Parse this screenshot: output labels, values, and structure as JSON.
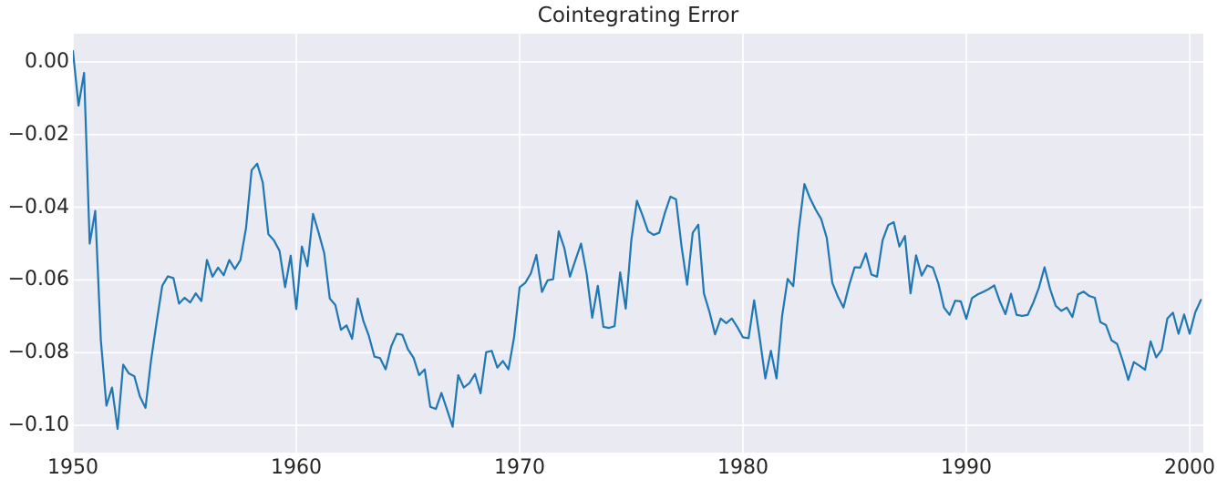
{
  "figure": {
    "kind": "matplotlib-seaborn-figure"
  },
  "chart_data": {
    "type": "line",
    "title": "Cointegrating Error",
    "xlabel": "",
    "ylabel": "",
    "x_unit": "year (quarterly observations)",
    "x_start": 1950.0,
    "x_step": 0.25,
    "xlim": [
      1950.0,
      2000.61
    ],
    "ylim": [
      -0.1075,
      0.00777
    ],
    "x_ticks": [
      1950,
      1960,
      1970,
      1980,
      1990,
      2000
    ],
    "x_tick_labels": [
      "1950",
      "1960",
      "1970",
      "1980",
      "1990",
      "2000"
    ],
    "y_ticks": [
      0.0,
      -0.02,
      -0.04,
      -0.06,
      -0.08,
      -0.1
    ],
    "y_tick_labels": [
      "0.00",
      "−0.02",
      "−0.04",
      "−0.06",
      "−0.08",
      "−0.10"
    ],
    "grid": true,
    "legend": null,
    "line_color": "#1f77b4",
    "line_width": 2.2,
    "background_color": "#eaeaf2",
    "grid_color": "#ffffff",
    "text_color": "#262626",
    "values": [
      0.003,
      -0.012,
      -0.003,
      -0.05,
      -0.041,
      -0.0766,
      -0.0946,
      -0.0896,
      -0.101,
      -0.0833,
      -0.0857,
      -0.0865,
      -0.0921,
      -0.0952,
      -0.082,
      -0.0715,
      -0.0616,
      -0.059,
      -0.0595,
      -0.0665,
      -0.0649,
      -0.0662,
      -0.0637,
      -0.0658,
      -0.0545,
      -0.0591,
      -0.0566,
      -0.0587,
      -0.0545,
      -0.057,
      -0.0545,
      -0.0457,
      -0.0298,
      -0.028,
      -0.0332,
      -0.0474,
      -0.0491,
      -0.052,
      -0.062,
      -0.0533,
      -0.068,
      -0.0508,
      -0.0562,
      -0.0418,
      -0.047,
      -0.0526,
      -0.0651,
      -0.0669,
      -0.0737,
      -0.0725,
      -0.0762,
      -0.0651,
      -0.0712,
      -0.0754,
      -0.0811,
      -0.0815,
      -0.0846,
      -0.0783,
      -0.0748,
      -0.0751,
      -0.0791,
      -0.0814,
      -0.0862,
      -0.0846,
      -0.0949,
      -0.0955,
      -0.0911,
      -0.0957,
      -0.1004,
      -0.0862,
      -0.0896,
      -0.0884,
      -0.0859,
      -0.0912,
      -0.0799,
      -0.0795,
      -0.0841,
      -0.0823,
      -0.0846,
      -0.0758,
      -0.062,
      -0.0608,
      -0.0582,
      -0.0531,
      -0.0633,
      -0.0601,
      -0.0598,
      -0.0466,
      -0.0512,
      -0.0591,
      -0.0545,
      -0.05,
      -0.0583,
      -0.0704,
      -0.0616,
      -0.0729,
      -0.0732,
      -0.0727,
      -0.0579,
      -0.0679,
      -0.0491,
      -0.0382,
      -0.0422,
      -0.0466,
      -0.0476,
      -0.047,
      -0.0416,
      -0.0371,
      -0.0378,
      -0.0508,
      -0.0613,
      -0.047,
      -0.0448,
      -0.0637,
      -0.0688,
      -0.075,
      -0.0706,
      -0.0719,
      -0.0706,
      -0.073,
      -0.0758,
      -0.076,
      -0.0656,
      -0.076,
      -0.0871,
      -0.0795,
      -0.0871,
      -0.07,
      -0.0597,
      -0.0617,
      -0.046,
      -0.0336,
      -0.0375,
      -0.0406,
      -0.0432,
      -0.0484,
      -0.0608,
      -0.0646,
      -0.0676,
      -0.0615,
      -0.0565,
      -0.0566,
      -0.0527,
      -0.0585,
      -0.0591,
      -0.0491,
      -0.0449,
      -0.0441,
      -0.0508,
      -0.0479,
      -0.0637,
      -0.0532,
      -0.0588,
      -0.056,
      -0.0566,
      -0.061,
      -0.0676,
      -0.0696,
      -0.0657,
      -0.0659,
      -0.0707,
      -0.065,
      -0.064,
      -0.0633,
      -0.0625,
      -0.0615,
      -0.0659,
      -0.0694,
      -0.0638,
      -0.0696,
      -0.0699,
      -0.0696,
      -0.0662,
      -0.0621,
      -0.0565,
      -0.0625,
      -0.0671,
      -0.0685,
      -0.0676,
      -0.0702,
      -0.064,
      -0.0632,
      -0.0644,
      -0.0649,
      -0.0716,
      -0.0724,
      -0.0766,
      -0.0776,
      -0.0822,
      -0.0875,
      -0.0826,
      -0.0836,
      -0.0847,
      -0.0769,
      -0.0813,
      -0.0792,
      -0.0706,
      -0.069,
      -0.0748,
      -0.0695,
      -0.0748,
      -0.0689,
      -0.0655
    ]
  }
}
